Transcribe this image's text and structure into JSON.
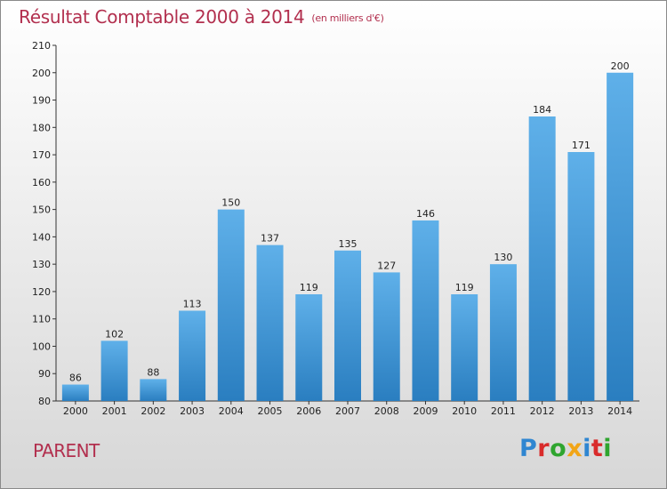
{
  "title": "Résultat Comptable 2000 à 2014",
  "subtitle": "(en milliers d'€)",
  "commune": "PARENT",
  "brand": {
    "letters": [
      {
        "ch": "P",
        "color": "#2f86d1"
      },
      {
        "ch": "r",
        "color": "#d92b2b"
      },
      {
        "ch": "o",
        "color": "#2fa52f"
      },
      {
        "ch": "x",
        "color": "#f2a516"
      },
      {
        "ch": "i",
        "color": "#2f86d1"
      },
      {
        "ch": "t",
        "color": "#d92b2b"
      },
      {
        "ch": "i",
        "color": "#2fa52f"
      }
    ]
  },
  "colors": {
    "bar_light": "#5fb0e9",
    "bar_dark": "#2a7ec0",
    "title": "#b22f4e"
  },
  "chart_data": {
    "type": "bar",
    "title": "Résultat Comptable 2000 à 2014",
    "subtitle": "(en milliers d'€)",
    "categories": [
      "2000",
      "2001",
      "2002",
      "2003",
      "2004",
      "2005",
      "2006",
      "2007",
      "2008",
      "2009",
      "2010",
      "2011",
      "2012",
      "2013",
      "2014"
    ],
    "values": [
      86,
      102,
      88,
      113,
      150,
      137,
      119,
      135,
      127,
      146,
      119,
      130,
      184,
      171,
      200
    ],
    "ylim": [
      80,
      210
    ],
    "yticks": [
      80,
      90,
      100,
      110,
      120,
      130,
      140,
      150,
      160,
      170,
      180,
      190,
      200,
      210
    ],
    "grid": false,
    "data_labels": true
  }
}
